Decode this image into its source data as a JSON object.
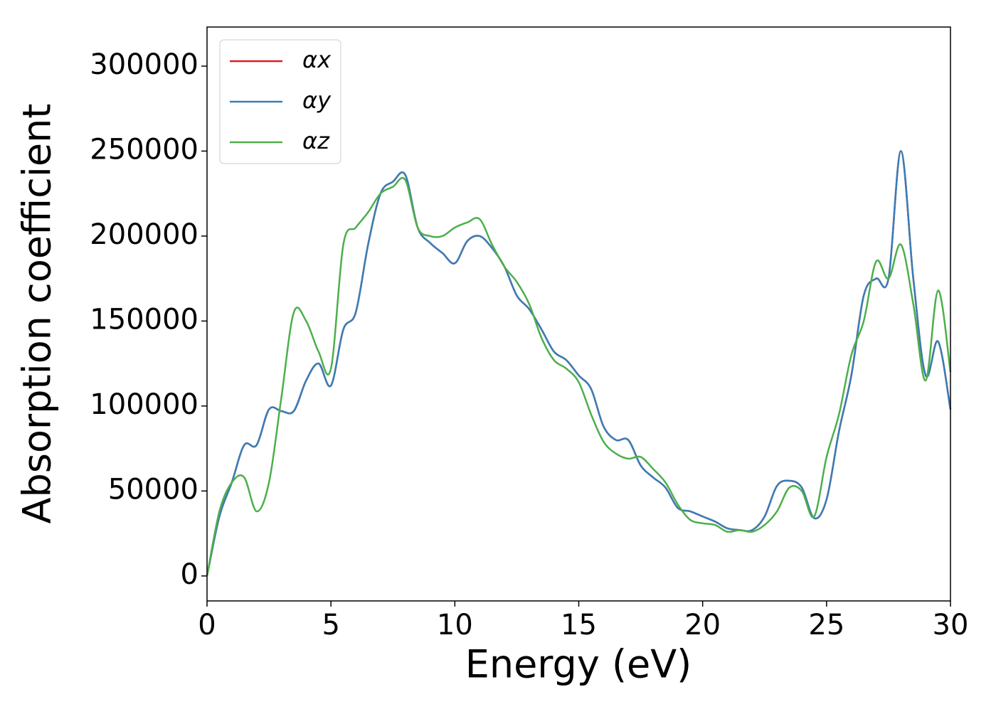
{
  "chart_data": {
    "type": "line",
    "xlabel": "Energy (eV)",
    "ylabel": "Absorption coefficient",
    "x": [
      0,
      0.5,
      1,
      1.5,
      2,
      2.5,
      3,
      3.5,
      4,
      4.5,
      5,
      5.5,
      6,
      6.5,
      7,
      7.5,
      8,
      8.5,
      9,
      9.5,
      10,
      10.5,
      11,
      11.5,
      12,
      12.5,
      13,
      13.5,
      14,
      14.5,
      15,
      15.5,
      16,
      16.5,
      17,
      17.5,
      18,
      18.5,
      19,
      19.5,
      20,
      20.5,
      21,
      21.5,
      22,
      22.5,
      23,
      23.5,
      24,
      24.5,
      25,
      25.5,
      26,
      26.5,
      27,
      27.5,
      28,
      28.5,
      29,
      29.5,
      30
    ],
    "series": [
      {
        "name": "αx",
        "color": "#e41a1c",
        "values": [
          0,
          35000,
          55000,
          77000,
          77000,
          98000,
          97000,
          97000,
          115000,
          125000,
          112000,
          145000,
          155000,
          195000,
          225000,
          232000,
          236000,
          205000,
          196000,
          190000,
          184000,
          197000,
          200000,
          193000,
          182000,
          165000,
          157000,
          145000,
          132000,
          127000,
          118000,
          110000,
          88000,
          80000,
          80000,
          65000,
          58000,
          52000,
          40000,
          38000,
          35000,
          32000,
          28000,
          27000,
          27000,
          35000,
          53000,
          56000,
          52000,
          34000,
          45000,
          85000,
          118000,
          165000,
          175000,
          175000,
          250000,
          175000,
          118000,
          138000,
          98000
        ]
      },
      {
        "name": "αy",
        "color": "#377eb8",
        "values": [
          0,
          35000,
          55000,
          77000,
          77000,
          98000,
          97000,
          97000,
          115000,
          125000,
          112000,
          145000,
          155000,
          195000,
          225000,
          232000,
          236000,
          205000,
          196000,
          190000,
          184000,
          197000,
          200000,
          193000,
          182000,
          165000,
          157000,
          145000,
          132000,
          127000,
          118000,
          110000,
          88000,
          80000,
          80000,
          65000,
          58000,
          52000,
          40000,
          38000,
          35000,
          32000,
          28000,
          27000,
          27000,
          35000,
          53000,
          56000,
          52000,
          34000,
          45000,
          85000,
          118000,
          165000,
          175000,
          175000,
          250000,
          175000,
          118000,
          138000,
          98000
        ]
      },
      {
        "name": "αz",
        "color": "#4daf4a",
        "values": [
          0,
          38000,
          55000,
          58000,
          38000,
          55000,
          105000,
          155000,
          150000,
          132000,
          122000,
          195000,
          205000,
          214000,
          225000,
          229000,
          233000,
          205000,
          200000,
          200000,
          205000,
          208000,
          210000,
          195000,
          182000,
          173000,
          160000,
          140000,
          127000,
          122000,
          114000,
          95000,
          79000,
          72000,
          69000,
          70000,
          63000,
          55000,
          42000,
          33000,
          31000,
          30000,
          26000,
          27000,
          26000,
          30000,
          38000,
          52000,
          50000,
          35000,
          70000,
          95000,
          130000,
          150000,
          185000,
          175000,
          195000,
          160000,
          115000,
          168000,
          120000
        ]
      }
    ],
    "xlim": [
      0,
      30
    ],
    "xticks": [
      0,
      5,
      10,
      15,
      20,
      25,
      30
    ],
    "ylim": [
      -14700,
      323000
    ],
    "yticks": [
      0,
      50000,
      100000,
      150000,
      200000,
      250000,
      300000
    ],
    "legend": "upper left"
  }
}
